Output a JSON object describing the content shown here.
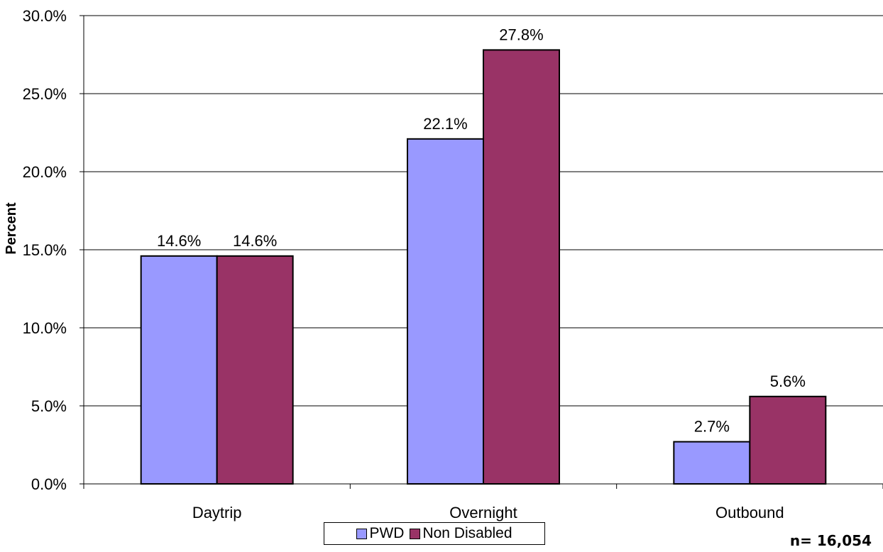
{
  "chart_data": {
    "type": "bar",
    "categories": [
      "Daytrip",
      "Overnight",
      "Outbound"
    ],
    "series": [
      {
        "name": "PWD",
        "values": [
          14.6,
          22.1,
          2.7
        ],
        "labels": [
          "14.6%",
          "22.1%",
          "2.7%"
        ],
        "color": "#9999ff"
      },
      {
        "name": "Non Disabled",
        "values": [
          14.6,
          27.8,
          5.6
        ],
        "labels": [
          "14.6%",
          "27.8%",
          "5.6%"
        ],
        "color": "#993366"
      }
    ],
    "ylabel": "Percent",
    "ylim": [
      0,
      30
    ],
    "yticks": [
      "0.0%",
      "5.0%",
      "10.0%",
      "15.0%",
      "20.0%",
      "25.0%",
      "30.0%"
    ],
    "grid": true,
    "legend_position": "bottom",
    "note": "n= 16,054"
  }
}
